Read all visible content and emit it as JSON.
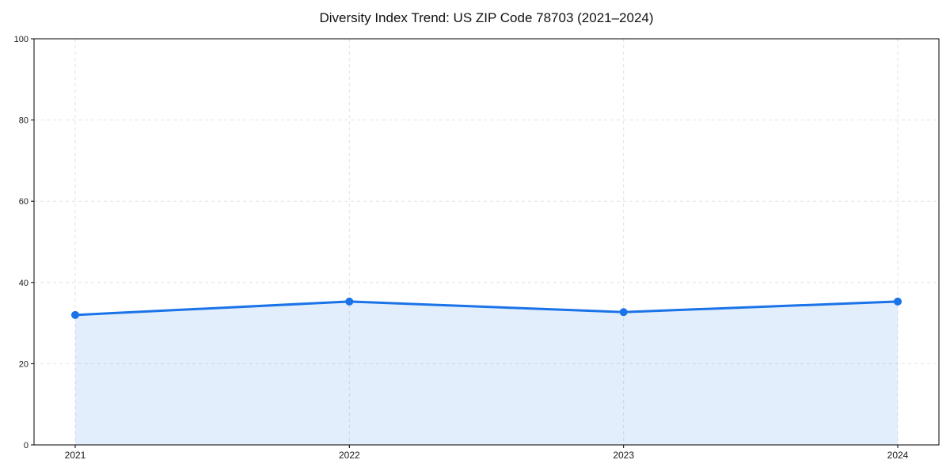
{
  "chart_data": {
    "type": "area",
    "title": "Diversity Index Trend: US ZIP Code 78703 (2021–2024)",
    "x": [
      "2021",
      "2022",
      "2023",
      "2024"
    ],
    "series": [
      {
        "name": "Diversity Index",
        "values": [
          32.0,
          35.3,
          32.7,
          35.3
        ]
      }
    ],
    "xlabel": "",
    "ylabel": "",
    "ylim": [
      0,
      100
    ],
    "yticks": [
      0,
      20,
      40,
      60,
      80,
      100
    ],
    "grid": "dashed, horizontal and vertical",
    "legend_position": "none",
    "colors": {
      "line": "#1a73e8",
      "marker": "#1a73e8",
      "fill": "#1a73e8",
      "fill_opacity": "0.12",
      "grid": "#e2e2e2",
      "axis": "#000000",
      "tick_text": "#1a1a1a",
      "background": "#ffffff"
    }
  }
}
